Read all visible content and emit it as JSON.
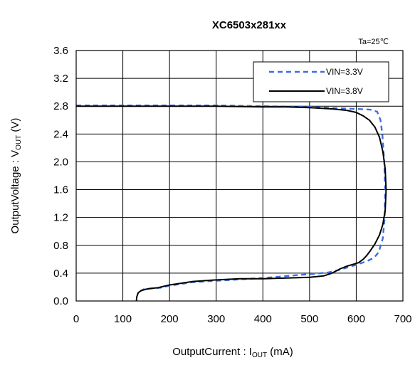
{
  "chart_data": {
    "type": "line",
    "title": "XC6503x281xx",
    "annotation": "Ta=25℃",
    "xlabel": {
      "main": "OutputCurrent : I",
      "sub": "OUT",
      "tail": " (mA)"
    },
    "ylabel": {
      "main": "OutputVoltage : V",
      "sub": "OUT",
      "tail": " (V)"
    },
    "xlim": [
      0,
      700
    ],
    "ylim": [
      0,
      3.6
    ],
    "x_ticks": [
      0,
      100,
      200,
      300,
      400,
      500,
      600,
      700
    ],
    "x_tick_labels": [
      "0",
      "100",
      "200",
      "300",
      "400",
      "500",
      "600",
      "700"
    ],
    "y_ticks": [
      0,
      0.4,
      0.8,
      1.2,
      1.6,
      2.0,
      2.4,
      2.8,
      3.2,
      3.6
    ],
    "y_tick_labels": [
      "0.0",
      "0.4",
      "0.8",
      "1.2",
      "1.6",
      "2.0",
      "2.4",
      "2.8",
      "3.2",
      "3.6"
    ],
    "grid": true,
    "legend_position": "top-right",
    "series": [
      {
        "name": "VIN=3.3V",
        "color": "#3b6fe0",
        "style": "dashed",
        "points": [
          [
            0,
            2.81
          ],
          [
            100,
            2.81
          ],
          [
            200,
            2.81
          ],
          [
            300,
            2.81
          ],
          [
            400,
            2.8
          ],
          [
            500,
            2.79
          ],
          [
            560,
            2.77
          ],
          [
            600,
            2.76
          ],
          [
            630,
            2.75
          ],
          [
            645,
            2.72
          ],
          [
            652,
            2.6
          ],
          [
            656,
            2.4
          ],
          [
            660,
            2.0
          ],
          [
            662,
            1.6
          ],
          [
            661,
            1.2
          ],
          [
            657,
            0.9
          ],
          [
            648,
            0.7
          ],
          [
            638,
            0.62
          ],
          [
            622,
            0.57
          ],
          [
            600,
            0.52
          ],
          [
            580,
            0.48
          ],
          [
            560,
            0.44
          ],
          [
            540,
            0.41
          ],
          [
            510,
            0.39
          ],
          [
            470,
            0.37
          ],
          [
            420,
            0.34
          ],
          [
            350,
            0.31
          ],
          [
            300,
            0.29
          ],
          [
            250,
            0.27
          ],
          [
            200,
            0.22
          ],
          [
            180,
            0.19
          ],
          [
            160,
            0.18
          ],
          [
            145,
            0.17
          ],
          [
            136,
            0.14
          ],
          [
            132,
            0.1
          ]
        ]
      },
      {
        "name": "VIN=3.8V",
        "color": "#000000",
        "style": "solid",
        "points": [
          [
            0,
            2.8
          ],
          [
            100,
            2.8
          ],
          [
            200,
            2.8
          ],
          [
            300,
            2.8
          ],
          [
            400,
            2.79
          ],
          [
            450,
            2.79
          ],
          [
            500,
            2.78
          ],
          [
            550,
            2.76
          ],
          [
            580,
            2.74
          ],
          [
            600,
            2.71
          ],
          [
            615,
            2.66
          ],
          [
            628,
            2.6
          ],
          [
            640,
            2.5
          ],
          [
            650,
            2.35
          ],
          [
            657,
            2.15
          ],
          [
            662,
            1.9
          ],
          [
            664,
            1.6
          ],
          [
            662,
            1.3
          ],
          [
            657,
            1.1
          ],
          [
            650,
            0.95
          ],
          [
            640,
            0.82
          ],
          [
            630,
            0.72
          ],
          [
            622,
            0.65
          ],
          [
            615,
            0.6
          ],
          [
            605,
            0.55
          ],
          [
            595,
            0.53
          ],
          [
            580,
            0.5
          ],
          [
            565,
            0.46
          ],
          [
            548,
            0.4
          ],
          [
            530,
            0.36
          ],
          [
            500,
            0.34
          ],
          [
            450,
            0.33
          ],
          [
            400,
            0.32
          ],
          [
            350,
            0.32
          ],
          [
            320,
            0.31
          ],
          [
            290,
            0.3
          ],
          [
            250,
            0.28
          ],
          [
            200,
            0.23
          ],
          [
            175,
            0.19
          ],
          [
            160,
            0.18
          ],
          [
            150,
            0.17
          ],
          [
            140,
            0.15
          ],
          [
            133,
            0.12
          ],
          [
            130,
            0.06
          ],
          [
            129,
            0.0
          ]
        ]
      }
    ]
  }
}
